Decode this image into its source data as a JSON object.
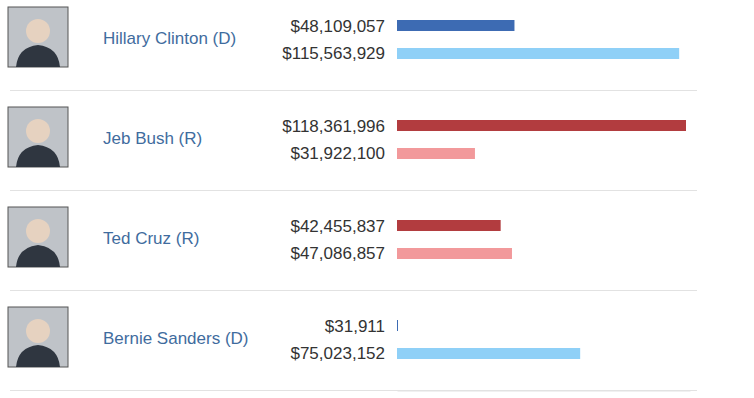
{
  "chart_data": {
    "type": "bar",
    "orientation": "horizontal",
    "categories": [
      "Hillary Clinton (D)",
      "Jeb Bush (R)",
      "Ted Cruz (R)",
      "Bernie Sanders (D)"
    ],
    "series": [
      {
        "colors": [
          "#3d6bb3",
          "#b23c3f",
          "#b23c3f",
          "#3d6bb3"
        ],
        "values": [
          48109057,
          118361996,
          42455837,
          31911
        ],
        "value_labels": [
          "$48,109,057",
          "$118,361,996",
          "$42,455,837",
          "$31,911"
        ]
      },
      {
        "colors": [
          "#8fd0f7",
          "#f2999b",
          "#f2999b",
          "#8fd0f7"
        ],
        "values": [
          115563929,
          31922100,
          47086857,
          75023152
        ],
        "value_labels": [
          "$115,563,929",
          "$31,922,100",
          "$47,086,857",
          "$75,023,152"
        ]
      }
    ],
    "xlim": [
      0,
      120000000
    ],
    "data_labels": true,
    "tick_labels": false
  }
}
